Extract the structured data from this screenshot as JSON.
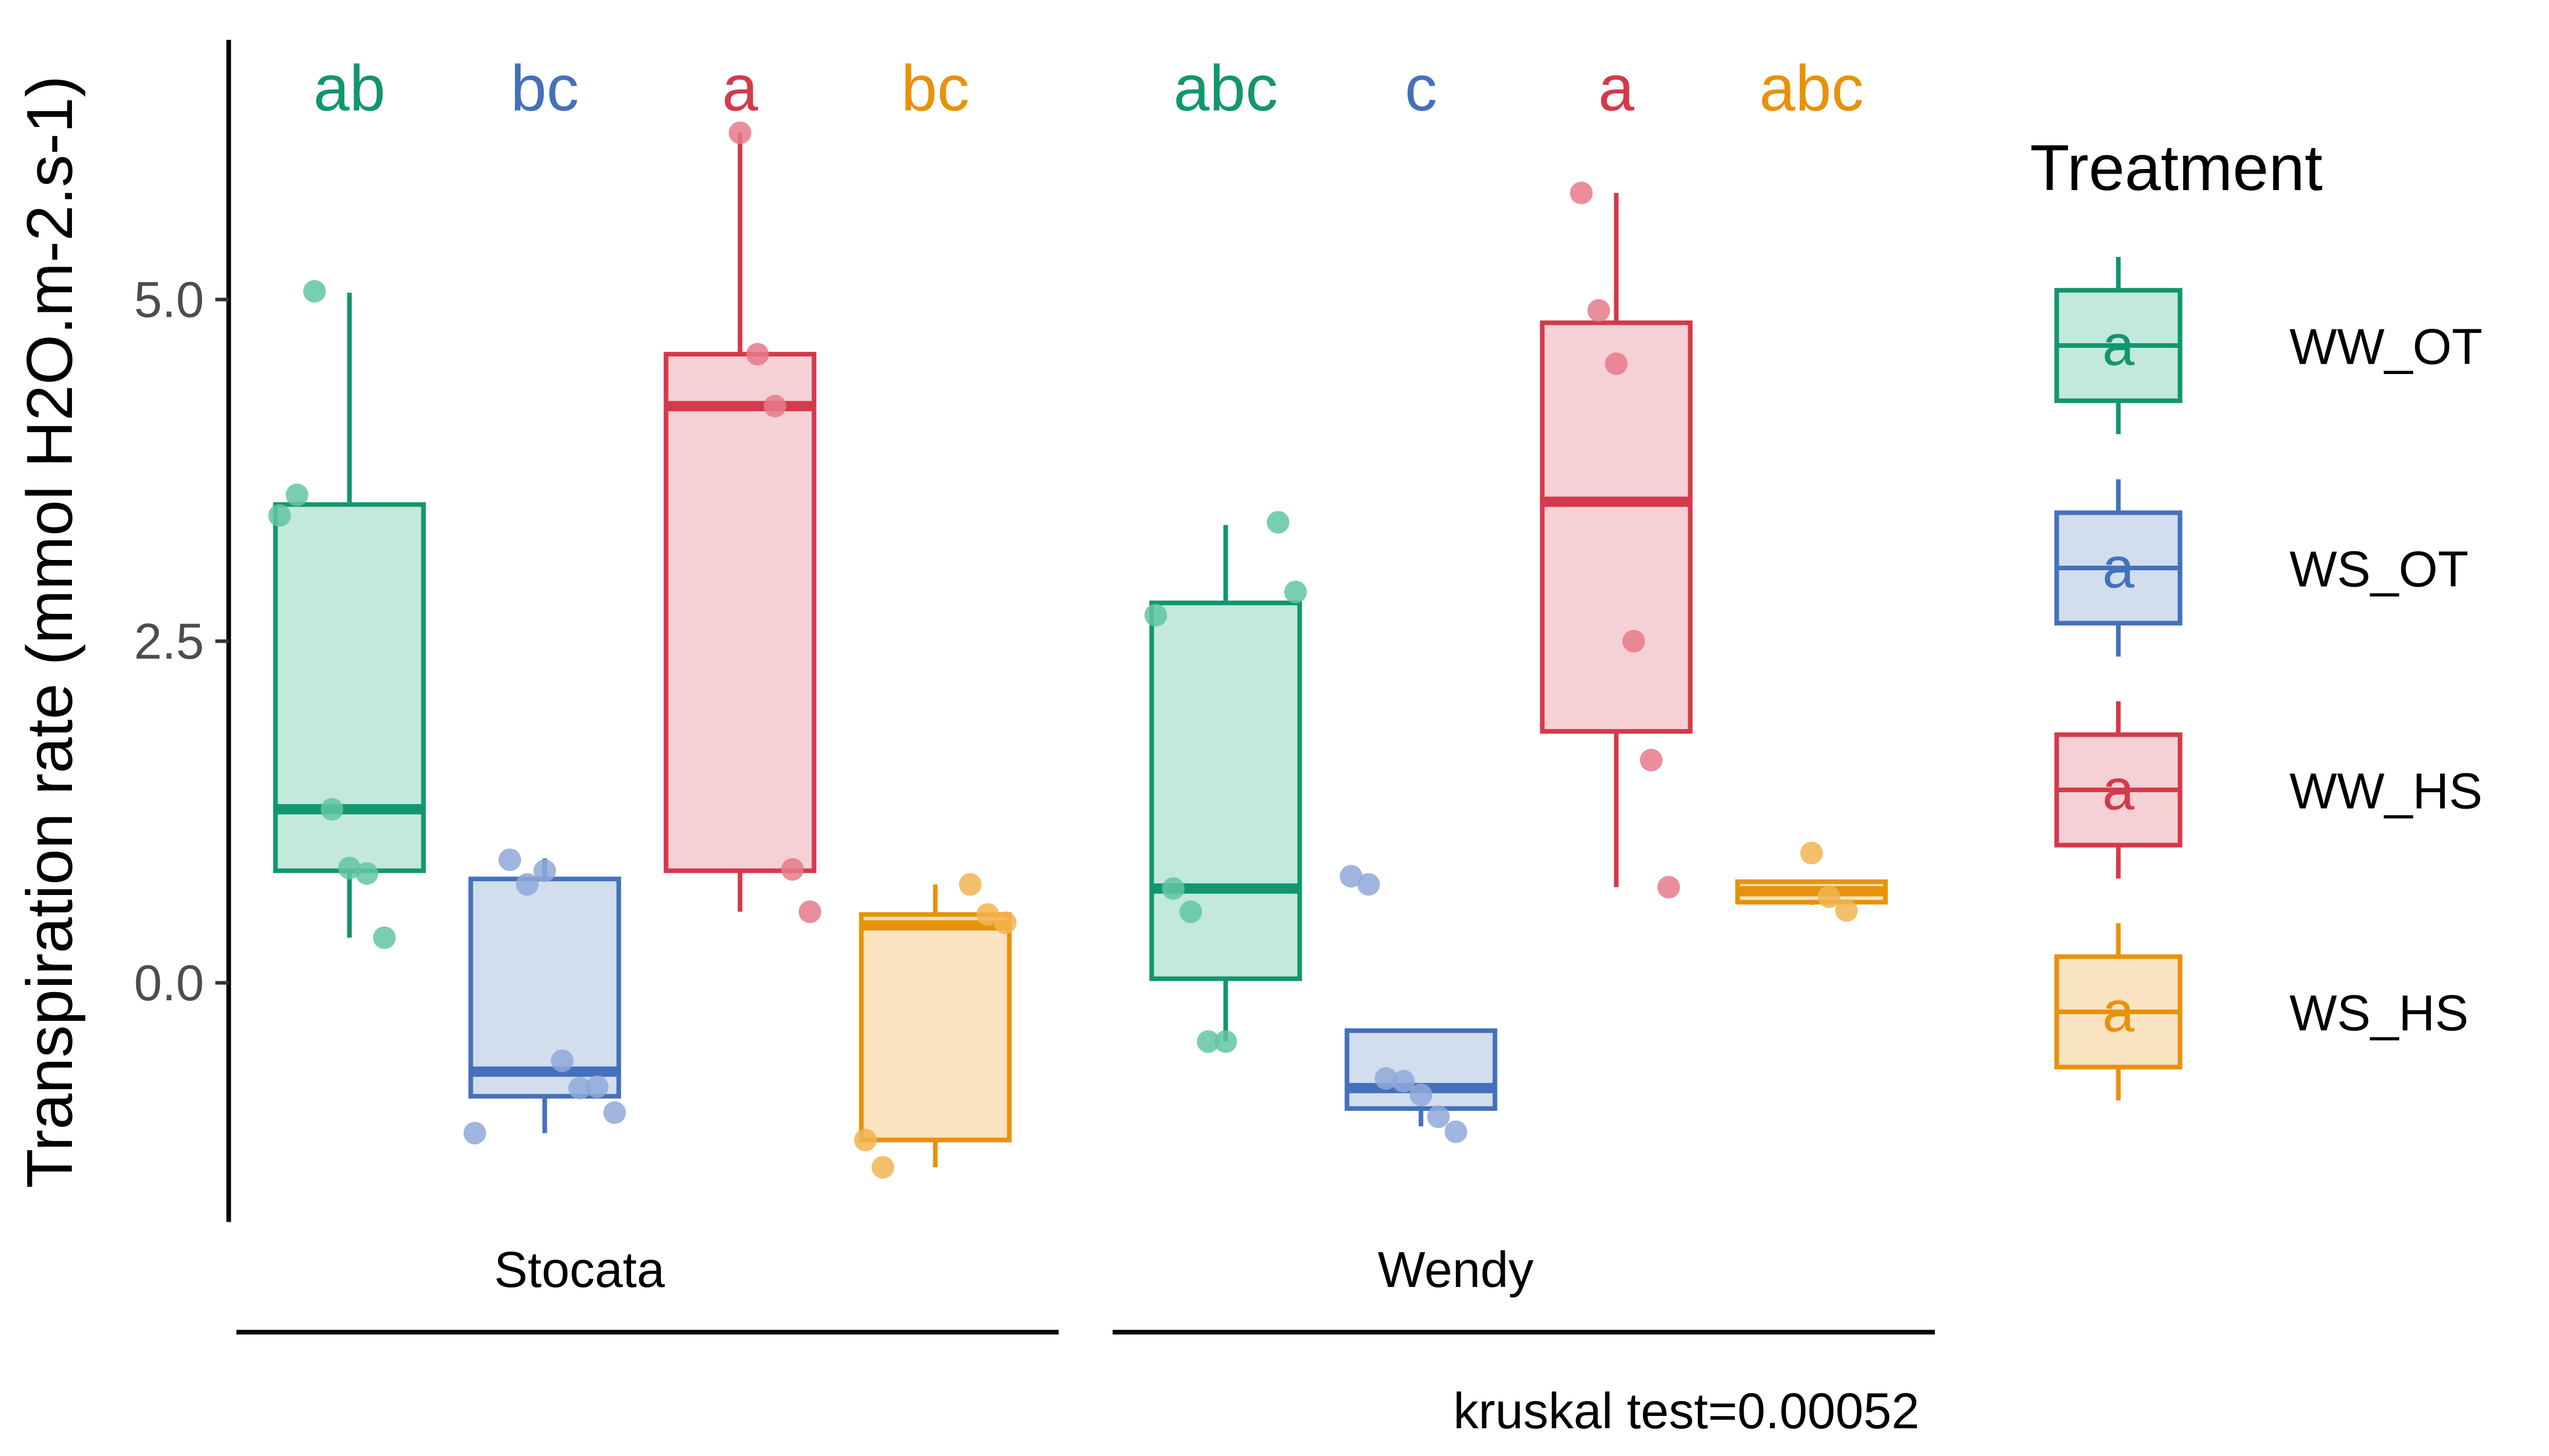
{
  "chart_data": {
    "type": "boxplot",
    "ylabel": "Transpiration rate (mmol H2O.m-2.s-1)",
    "y_ticks": [
      "0.0",
      "2.5",
      "5.0"
    ],
    "y_tick_values": [
      0,
      2.5,
      5
    ],
    "ylim": [
      -1.75,
      6.9
    ],
    "grid": false,
    "legend_position": "right",
    "legend_title": "Treatment",
    "annotation": "kruskal test=0.00052",
    "treatments": [
      {
        "name": "WW_OT",
        "color": "#12966f",
        "fill": "#c3e8dc",
        "point": "#62c5a3"
      },
      {
        "name": "WS_OT",
        "color": "#4471bb",
        "fill": "#d2ddee",
        "point": "#8fa9d9"
      },
      {
        "name": "WW_HS",
        "color": "#d43a4c",
        "fill": "#f5d0d5",
        "point": "#e67a89"
      },
      {
        "name": "WS_HS",
        "color": "#e8920a",
        "fill": "#f9e3c1",
        "point": "#f2b450"
      }
    ],
    "groups": [
      {
        "name": "Stocata",
        "boxes": [
          {
            "treatment": "WW_OT",
            "letter": "ab",
            "whisker_low": 0.33,
            "q1": 0.82,
            "median": 1.27,
            "q3": 3.5,
            "whisker_high": 5.05,
            "points": [
              3.42,
              3.57,
              5.06,
              1.27,
              0.84,
              0.8,
              0.33
            ]
          },
          {
            "treatment": "WS_OT",
            "letter": "bc",
            "whisker_low": -1.1,
            "q1": -0.83,
            "median": -0.65,
            "q3": 0.76,
            "whisker_high": 0.91,
            "points": [
              0.9,
              0.72,
              0.82,
              -0.57,
              -0.77,
              -0.76,
              -0.95,
              -1.1
            ]
          },
          {
            "treatment": "WW_HS",
            "letter": "a",
            "whisker_low": 0.52,
            "q1": 0.82,
            "median": 4.22,
            "q3": 4.6,
            "whisker_high": 6.22,
            "points": [
              6.22,
              4.6,
              4.22,
              0.83,
              0.52
            ]
          },
          {
            "treatment": "WS_HS",
            "letter": "bc",
            "whisker_low": -1.35,
            "q1": -1.15,
            "median": 0.42,
            "q3": 0.5,
            "whisker_high": 0.72,
            "points": [
              0.72,
              0.5,
              0.44,
              -1.15,
              -1.35
            ]
          }
        ]
      },
      {
        "name": "Wendy",
        "boxes": [
          {
            "treatment": "WW_OT",
            "letter": "abc",
            "whisker_low": -0.43,
            "q1": 0.03,
            "median": 0.69,
            "q3": 2.78,
            "whisker_high": 3.35,
            "points": [
              3.37,
              2.86,
              2.69,
              0.69,
              0.52,
              -0.43,
              -0.43
            ]
          },
          {
            "treatment": "WS_OT",
            "letter": "c",
            "whisker_low": -1.05,
            "q1": -0.92,
            "median": -0.77,
            "q3": -0.35,
            "whisker_high": -0.35,
            "points": [
              0.78,
              0.72,
              -0.7,
              -0.72,
              -0.82,
              -0.98,
              -1.09
            ]
          },
          {
            "treatment": "WW_HS",
            "letter": "a",
            "whisker_low": 0.7,
            "q1": 1.84,
            "median": 3.52,
            "q3": 4.83,
            "whisker_high": 5.78,
            "points": [
              5.78,
              4.92,
              4.53,
              2.5,
              1.63,
              0.7
            ]
          },
          {
            "treatment": "WS_HS",
            "letter": "abc",
            "whisker_low": 0.57,
            "q1": 0.59,
            "median": 0.67,
            "q3": 0.74,
            "whisker_high": 0.74,
            "points": [
              0.95,
              0.63,
              0.53
            ]
          }
        ]
      }
    ],
    "legend_key_letter": "a"
  }
}
